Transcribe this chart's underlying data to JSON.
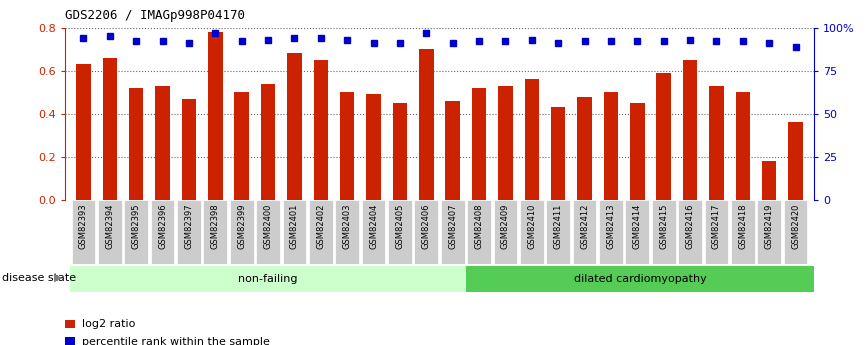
{
  "title": "GDS2206 / IMAGp998P04170",
  "samples": [
    "GSM82393",
    "GSM82394",
    "GSM82395",
    "GSM82396",
    "GSM82397",
    "GSM82398",
    "GSM82399",
    "GSM82400",
    "GSM82401",
    "GSM82402",
    "GSM82403",
    "GSM82404",
    "GSM82405",
    "GSM82406",
    "GSM82407",
    "GSM82408",
    "GSM82409",
    "GSM82410",
    "GSM82411",
    "GSM82412",
    "GSM82413",
    "GSM82414",
    "GSM82415",
    "GSM82416",
    "GSM82417",
    "GSM82418",
    "GSM82419",
    "GSM82420"
  ],
  "log2_ratio": [
    0.63,
    0.66,
    0.52,
    0.53,
    0.47,
    0.78,
    0.5,
    0.54,
    0.68,
    0.65,
    0.5,
    0.49,
    0.45,
    0.7,
    0.46,
    0.52,
    0.53,
    0.56,
    0.43,
    0.48,
    0.5,
    0.45,
    0.59,
    0.65,
    0.53,
    0.5,
    0.18,
    0.36
  ],
  "percentile_rank": [
    94,
    95,
    92,
    92,
    91,
    97,
    92,
    93,
    94,
    94,
    93,
    91,
    91,
    97,
    91,
    92,
    92,
    93,
    91,
    92,
    92,
    92,
    92,
    93,
    92,
    92,
    91,
    89
  ],
  "non_failing_count": 15,
  "bar_color": "#cc2200",
  "dot_color": "#0000cc",
  "nonfailing_bg": "#ccffcc",
  "dcm_bg": "#55cc55",
  "left_axis_color": "#cc2200",
  "right_axis_color": "#0000cc",
  "ylim_left": [
    0,
    0.8
  ],
  "ylim_right": [
    0,
    100
  ],
  "yticks_left": [
    0,
    0.2,
    0.4,
    0.6,
    0.8
  ],
  "yticks_right": [
    0,
    25,
    50,
    75,
    100
  ],
  "background_color": "#ffffff",
  "xtick_bg": "#cccccc"
}
